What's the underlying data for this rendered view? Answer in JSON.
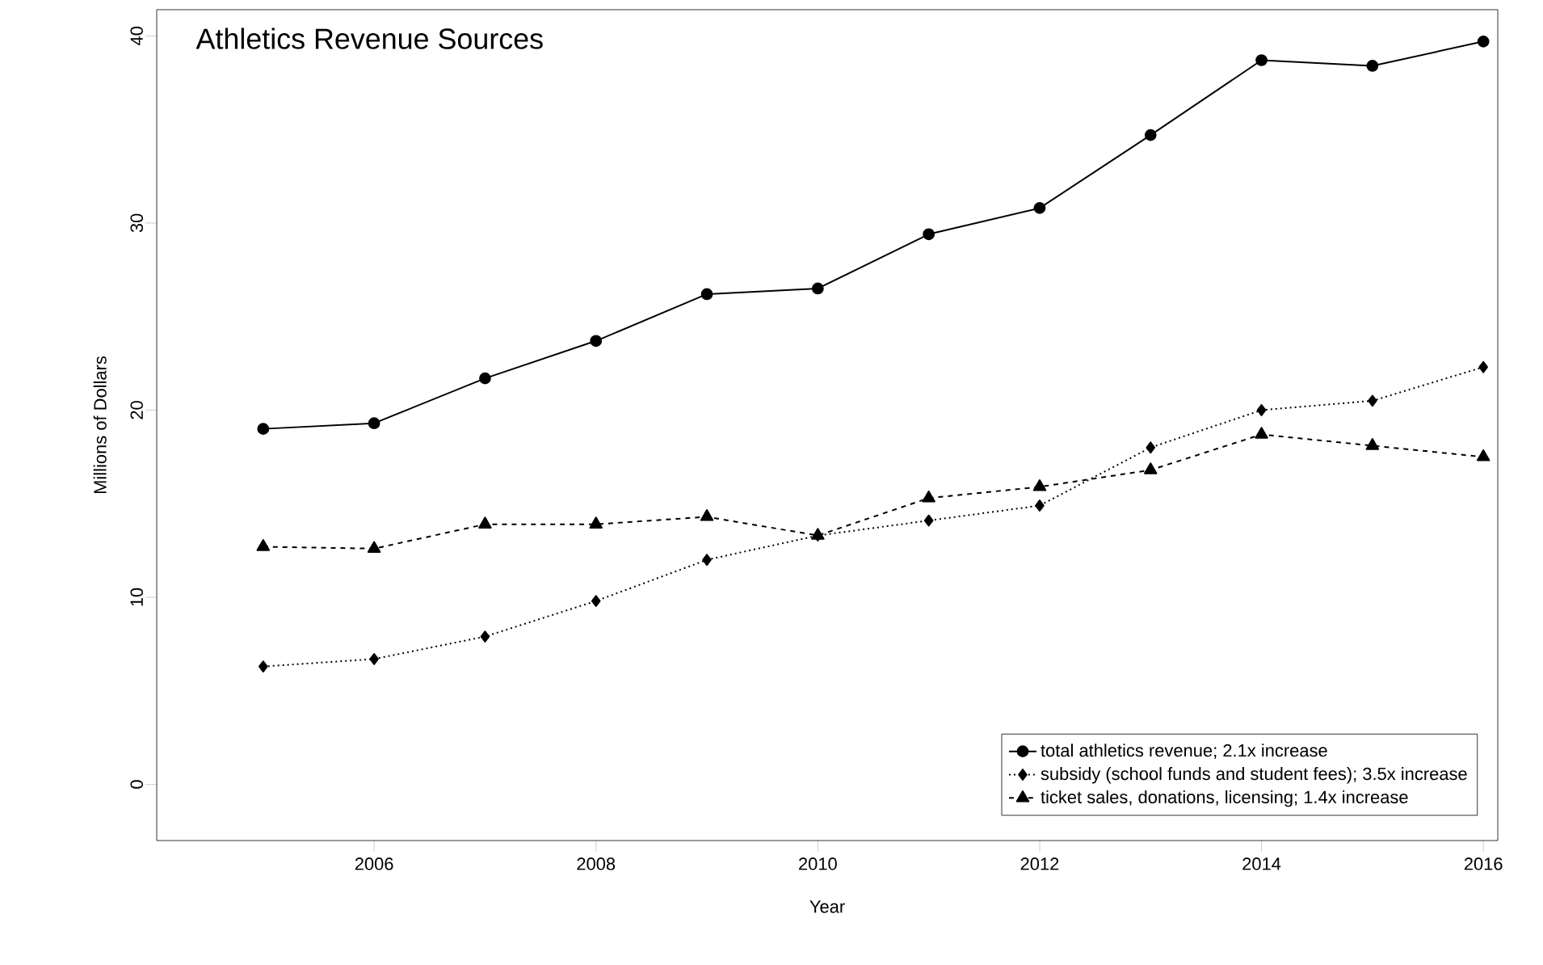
{
  "chart_data": {
    "type": "line",
    "title": "Athletics Revenue Sources",
    "xlabel": "Year",
    "ylabel": "Millions of Dollars",
    "x": [
      2005,
      2006,
      2007,
      2008,
      2009,
      2010,
      2011,
      2012,
      2013,
      2014,
      2015,
      2016
    ],
    "series": [
      {
        "name": "total athletics revenue; 2.1x increase",
        "color": "#000000",
        "marker": "circle",
        "line_style": "solid",
        "values": [
          19.0,
          19.3,
          21.7,
          23.7,
          26.2,
          26.5,
          29.4,
          30.8,
          34.7,
          38.7,
          38.4,
          39.7
        ]
      },
      {
        "name": "subsidy (school funds and student fees); 3.5x increase",
        "color": "#000000",
        "marker": "diamond",
        "line_style": "dotted",
        "values": [
          6.3,
          6.7,
          7.9,
          9.8,
          12.0,
          13.3,
          14.1,
          14.9,
          18.0,
          20.0,
          20.5,
          22.3
        ]
      },
      {
        "name": "ticket sales, donations, licensing; 1.4x increase",
        "color": "#000000",
        "marker": "triangle",
        "line_style": "dashed",
        "values": [
          12.7,
          12.6,
          13.9,
          13.9,
          14.3,
          13.3,
          15.3,
          15.9,
          16.8,
          18.7,
          18.1,
          17.5
        ]
      }
    ],
    "xlim": [
      2004.04,
      2016.13
    ],
    "ylim": [
      -3.0,
      41.4
    ],
    "xticks": [
      2006,
      2008,
      2010,
      2012,
      2014,
      2016
    ],
    "yticks": [
      0,
      10,
      20,
      30,
      40
    ],
    "grid": false,
    "legend": "bottom right"
  }
}
